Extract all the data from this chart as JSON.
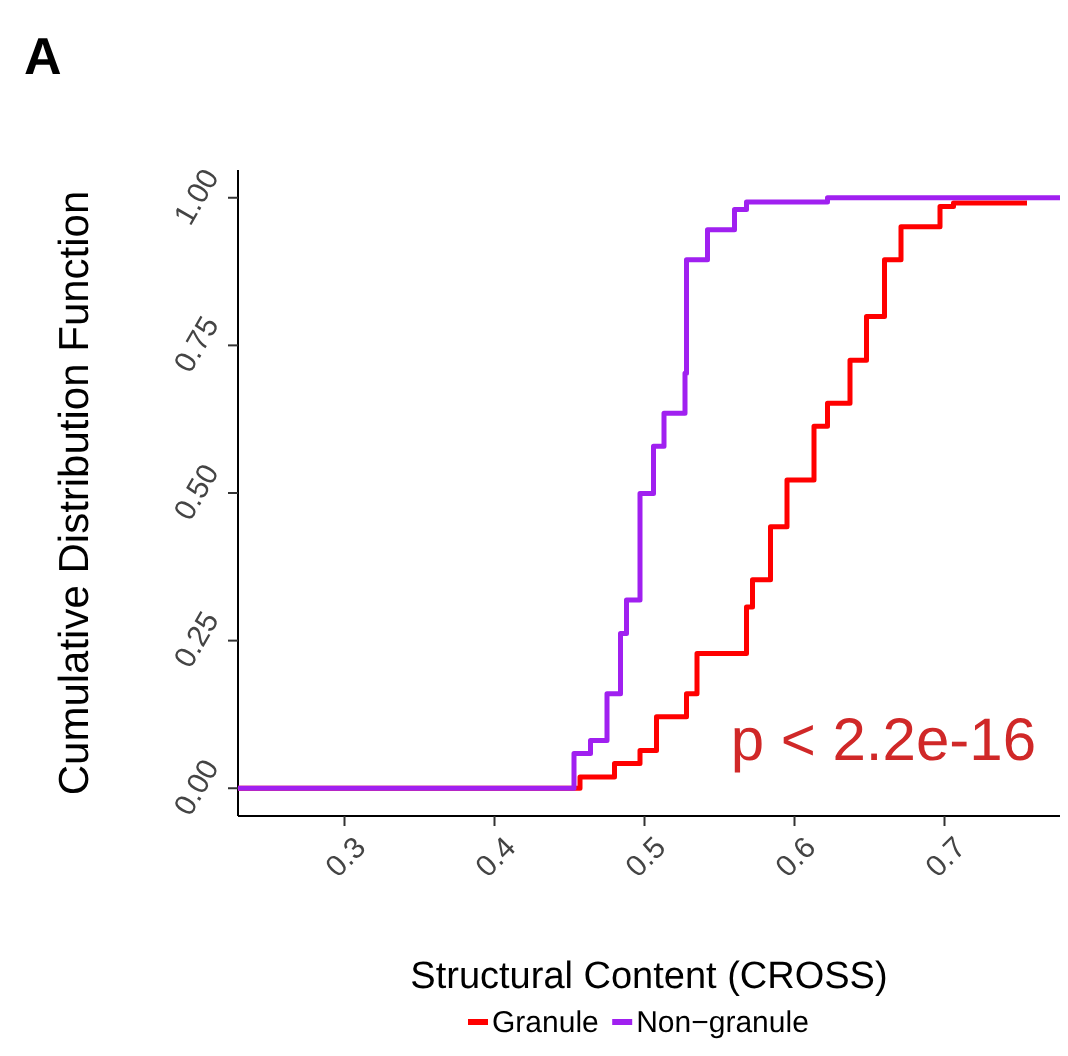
{
  "chart_data": {
    "type": "step",
    "title": "A",
    "xlabel": "Structural Content (CROSS)",
    "ylabel": "Cumulative Distribution Function",
    "xlim": [
      0.229,
      0.777
    ],
    "ylim": [
      -0.047,
      1.047
    ],
    "xticks": [
      0.3,
      0.4,
      0.5,
      0.6,
      0.7
    ],
    "yticks": [
      {
        "value": 0,
        "label": "0.00"
      },
      {
        "value": 0.25,
        "label": "0.25"
      },
      {
        "value": 0.5,
        "label": "0.50"
      },
      {
        "value": 0.75,
        "label": "0.75"
      },
      {
        "value": 1,
        "label": "1.00"
      }
    ],
    "grid": false,
    "legend": "bottom",
    "annotations": [
      "p < 2.2e-16"
    ],
    "series": [
      {
        "name": "Granule",
        "color": "#ff0000",
        "x": [
          0.229,
          0.441,
          0.457,
          0.48,
          0.497,
          0.508,
          0.528,
          0.535,
          0.568,
          0.572,
          0.584,
          0.595,
          0.613,
          0.622,
          0.637,
          0.648,
          0.66,
          0.671,
          0.697,
          0.706,
          0.755
        ],
        "values": [
          0,
          0,
          0.019,
          0.042,
          0.064,
          0.121,
          0.16,
          0.228,
          0.307,
          0.353,
          0.443,
          0.522,
          0.613,
          0.652,
          0.725,
          0.799,
          0.895,
          0.951,
          0.985,
          0.991,
          0.991
        ]
      },
      {
        "name": "Non−granule",
        "color": "#a020f0",
        "x": [
          0.229,
          0.44,
          0.453,
          0.464,
          0.475,
          0.484,
          0.488,
          0.497,
          0.506,
          0.513,
          0.527,
          0.528,
          0.542,
          0.56,
          0.568,
          0.622,
          0.777
        ],
        "values": [
          0,
          0,
          0.059,
          0.081,
          0.16,
          0.262,
          0.319,
          0.499,
          0.579,
          0.635,
          0.703,
          0.895,
          0.946,
          0.98,
          0.993,
          1,
          1
        ]
      }
    ]
  }
}
